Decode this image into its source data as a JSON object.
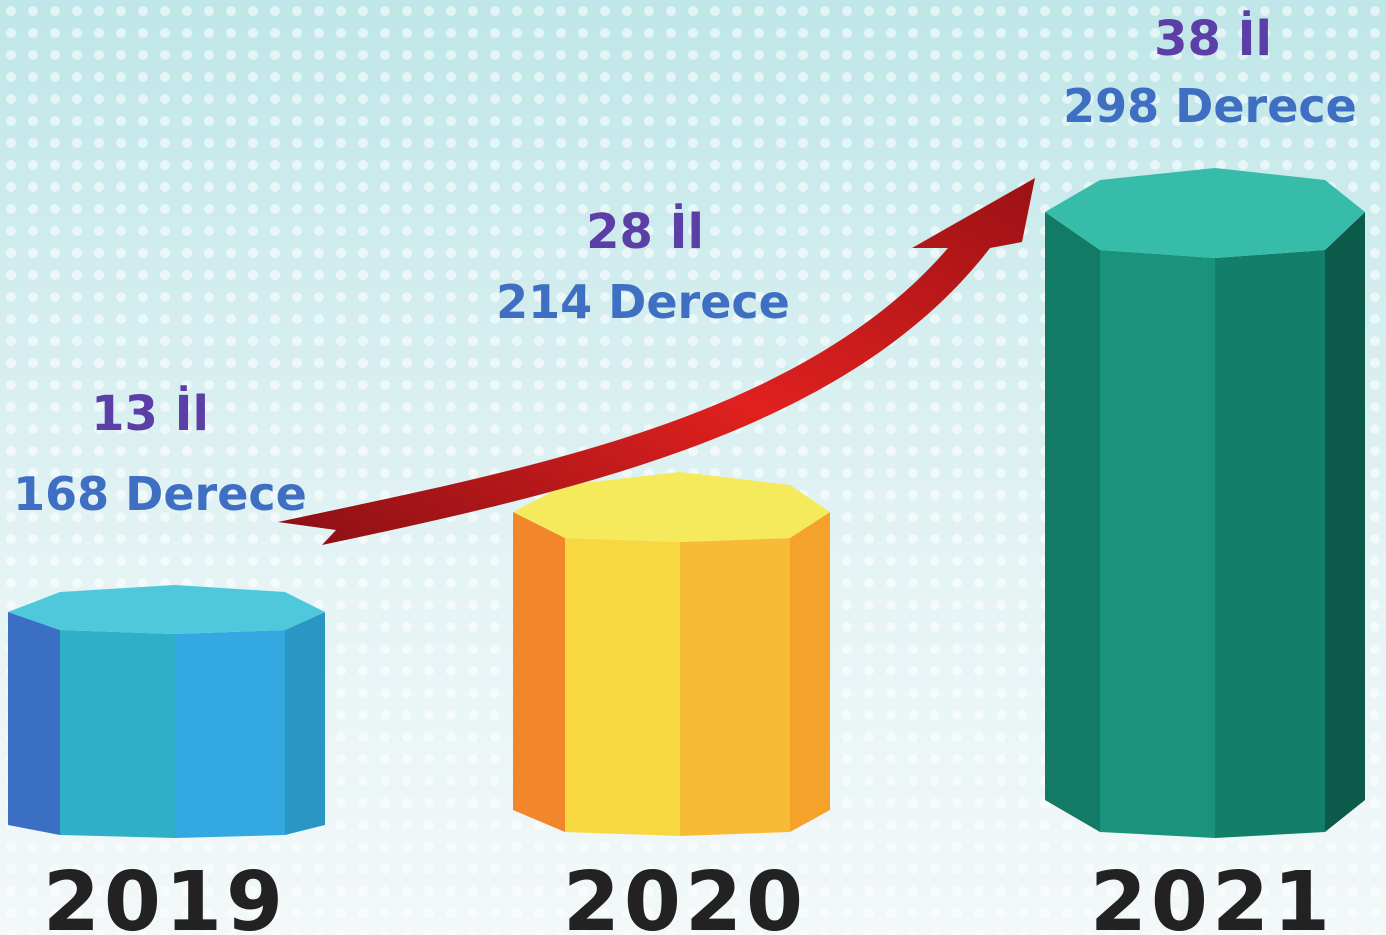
{
  "items": [
    {
      "year": "2019",
      "provinces": "13 İl",
      "degrees": "168 Derece"
    },
    {
      "year": "2020",
      "provinces": "28 İl",
      "degrees": "214 Derece"
    },
    {
      "year": "2021",
      "provinces": "38 İl",
      "degrees": "298 Derece"
    }
  ]
}
